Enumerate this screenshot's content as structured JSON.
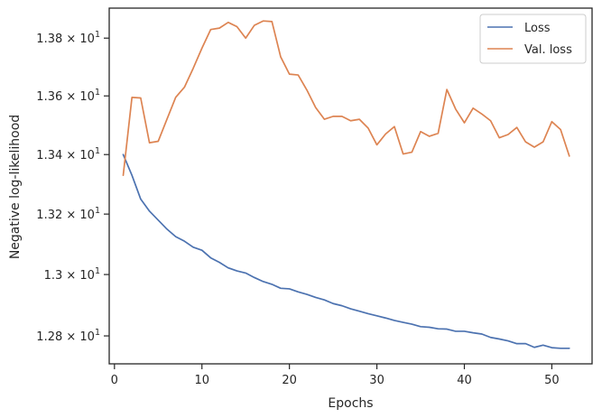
{
  "chart_data": {
    "type": "line",
    "xlabel": "Epochs",
    "ylabel": "Negative log-likelihood",
    "xlim": [
      -0.6,
      54.6
    ],
    "ylim": [
      12.71,
      13.905
    ],
    "yscale": "log",
    "grid": false,
    "legend_position": "top-right",
    "x_ticks": [
      {
        "value": 0,
        "label": "0"
      },
      {
        "value": 10,
        "label": "10"
      },
      {
        "value": 20,
        "label": "20"
      },
      {
        "value": 30,
        "label": "30"
      },
      {
        "value": 40,
        "label": "40"
      },
      {
        "value": 50,
        "label": "50"
      }
    ],
    "y_ticks": [
      {
        "value": 12.8,
        "mantissa": "1.28",
        "base": "10",
        "exponent": "1"
      },
      {
        "value": 13.0,
        "mantissa": "1.3",
        "base": "10",
        "exponent": "1"
      },
      {
        "value": 13.2,
        "mantissa": "1.32",
        "base": "10",
        "exponent": "1"
      },
      {
        "value": 13.4,
        "mantissa": "1.34",
        "base": "10",
        "exponent": "1"
      },
      {
        "value": 13.6,
        "mantissa": "1.36",
        "base": "10",
        "exponent": "1"
      },
      {
        "value": 13.8,
        "mantissa": "1.38",
        "base": "10",
        "exponent": "1"
      }
    ],
    "x": [
      1,
      2,
      3,
      4,
      5,
      6,
      7,
      8,
      9,
      10,
      11,
      12,
      13,
      14,
      15,
      16,
      17,
      18,
      19,
      20,
      21,
      22,
      23,
      24,
      25,
      26,
      27,
      28,
      29,
      30,
      31,
      32,
      33,
      34,
      35,
      36,
      37,
      38,
      39,
      40,
      41,
      42,
      43,
      44,
      45,
      46,
      47,
      48,
      49,
      50,
      51,
      52
    ],
    "series": [
      {
        "name": "Loss",
        "color": "#4c72b0",
        "values": [
          13.4,
          13.33,
          13.25,
          13.21,
          13.18,
          13.15,
          13.125,
          13.11,
          13.09,
          13.08,
          13.055,
          13.04,
          13.022,
          13.012,
          13.005,
          12.99,
          12.977,
          12.968,
          12.955,
          12.953,
          12.943,
          12.935,
          12.925,
          12.917,
          12.905,
          12.898,
          12.888,
          12.88,
          12.872,
          12.865,
          12.858,
          12.85,
          12.844,
          12.838,
          12.83,
          12.828,
          12.823,
          12.822,
          12.815,
          12.815,
          12.81,
          12.806,
          12.795,
          12.79,
          12.784,
          12.775,
          12.775,
          12.763,
          12.77,
          12.762,
          12.76,
          12.76
        ]
      },
      {
        "name": "Val. loss",
        "color": "#dd8452",
        "values": [
          13.33,
          13.595,
          13.593,
          13.44,
          13.445,
          13.52,
          13.595,
          13.63,
          13.695,
          13.765,
          13.83,
          13.835,
          13.855,
          13.84,
          13.8,
          13.845,
          13.86,
          13.858,
          13.735,
          13.675,
          13.672,
          13.62,
          13.56,
          13.52,
          13.53,
          13.53,
          13.515,
          13.52,
          13.49,
          13.433,
          13.47,
          13.495,
          13.402,
          13.408,
          13.478,
          13.462,
          13.472,
          13.622,
          13.555,
          13.508,
          13.558,
          13.538,
          13.515,
          13.457,
          13.468,
          13.492,
          13.443,
          13.425,
          13.443,
          13.512,
          13.485,
          13.395
        ]
      }
    ]
  }
}
